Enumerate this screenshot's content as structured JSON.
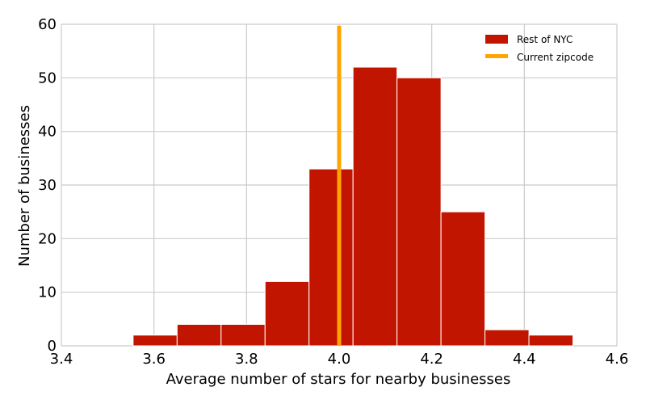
{
  "chart_data": {
    "type": "bar",
    "subtype": "histogram",
    "xlabel": "Average number of stars for nearby businesses",
    "ylabel": "Number of businesses",
    "xlim": [
      3.4,
      4.6
    ],
    "ylim": [
      0,
      60
    ],
    "x_ticks": [
      "3.4",
      "3.6",
      "3.8",
      "4.0",
      "4.2",
      "4.4",
      "4.6"
    ],
    "y_ticks": [
      "0",
      "10",
      "20",
      "30",
      "40",
      "50",
      "60"
    ],
    "grid": true,
    "legend_position": "top-right",
    "bins": [
      {
        "x0": 3.555,
        "x1": 3.65,
        "count": 2
      },
      {
        "x0": 3.65,
        "x1": 3.745,
        "count": 4
      },
      {
        "x0": 3.745,
        "x1": 3.84,
        "count": 4
      },
      {
        "x0": 3.84,
        "x1": 3.935,
        "count": 12
      },
      {
        "x0": 3.935,
        "x1": 4.03,
        "count": 33
      },
      {
        "x0": 4.03,
        "x1": 4.125,
        "count": 52
      },
      {
        "x0": 4.125,
        "x1": 4.22,
        "count": 50
      },
      {
        "x0": 4.22,
        "x1": 4.315,
        "count": 25
      },
      {
        "x0": 4.315,
        "x1": 4.41,
        "count": 3
      },
      {
        "x0": 4.41,
        "x1": 4.505,
        "count": 2
      }
    ],
    "series": [
      {
        "name": "Rest of NYC",
        "kind": "histogram",
        "color": "#c21500"
      },
      {
        "name": "Current zipcode",
        "kind": "vertical-line",
        "x": 4.0,
        "color": "#ffa500"
      }
    ],
    "colors": {
      "background": "#ffffff",
      "grid": "#cbcbcb",
      "bar_edge": "#ffffff"
    }
  }
}
